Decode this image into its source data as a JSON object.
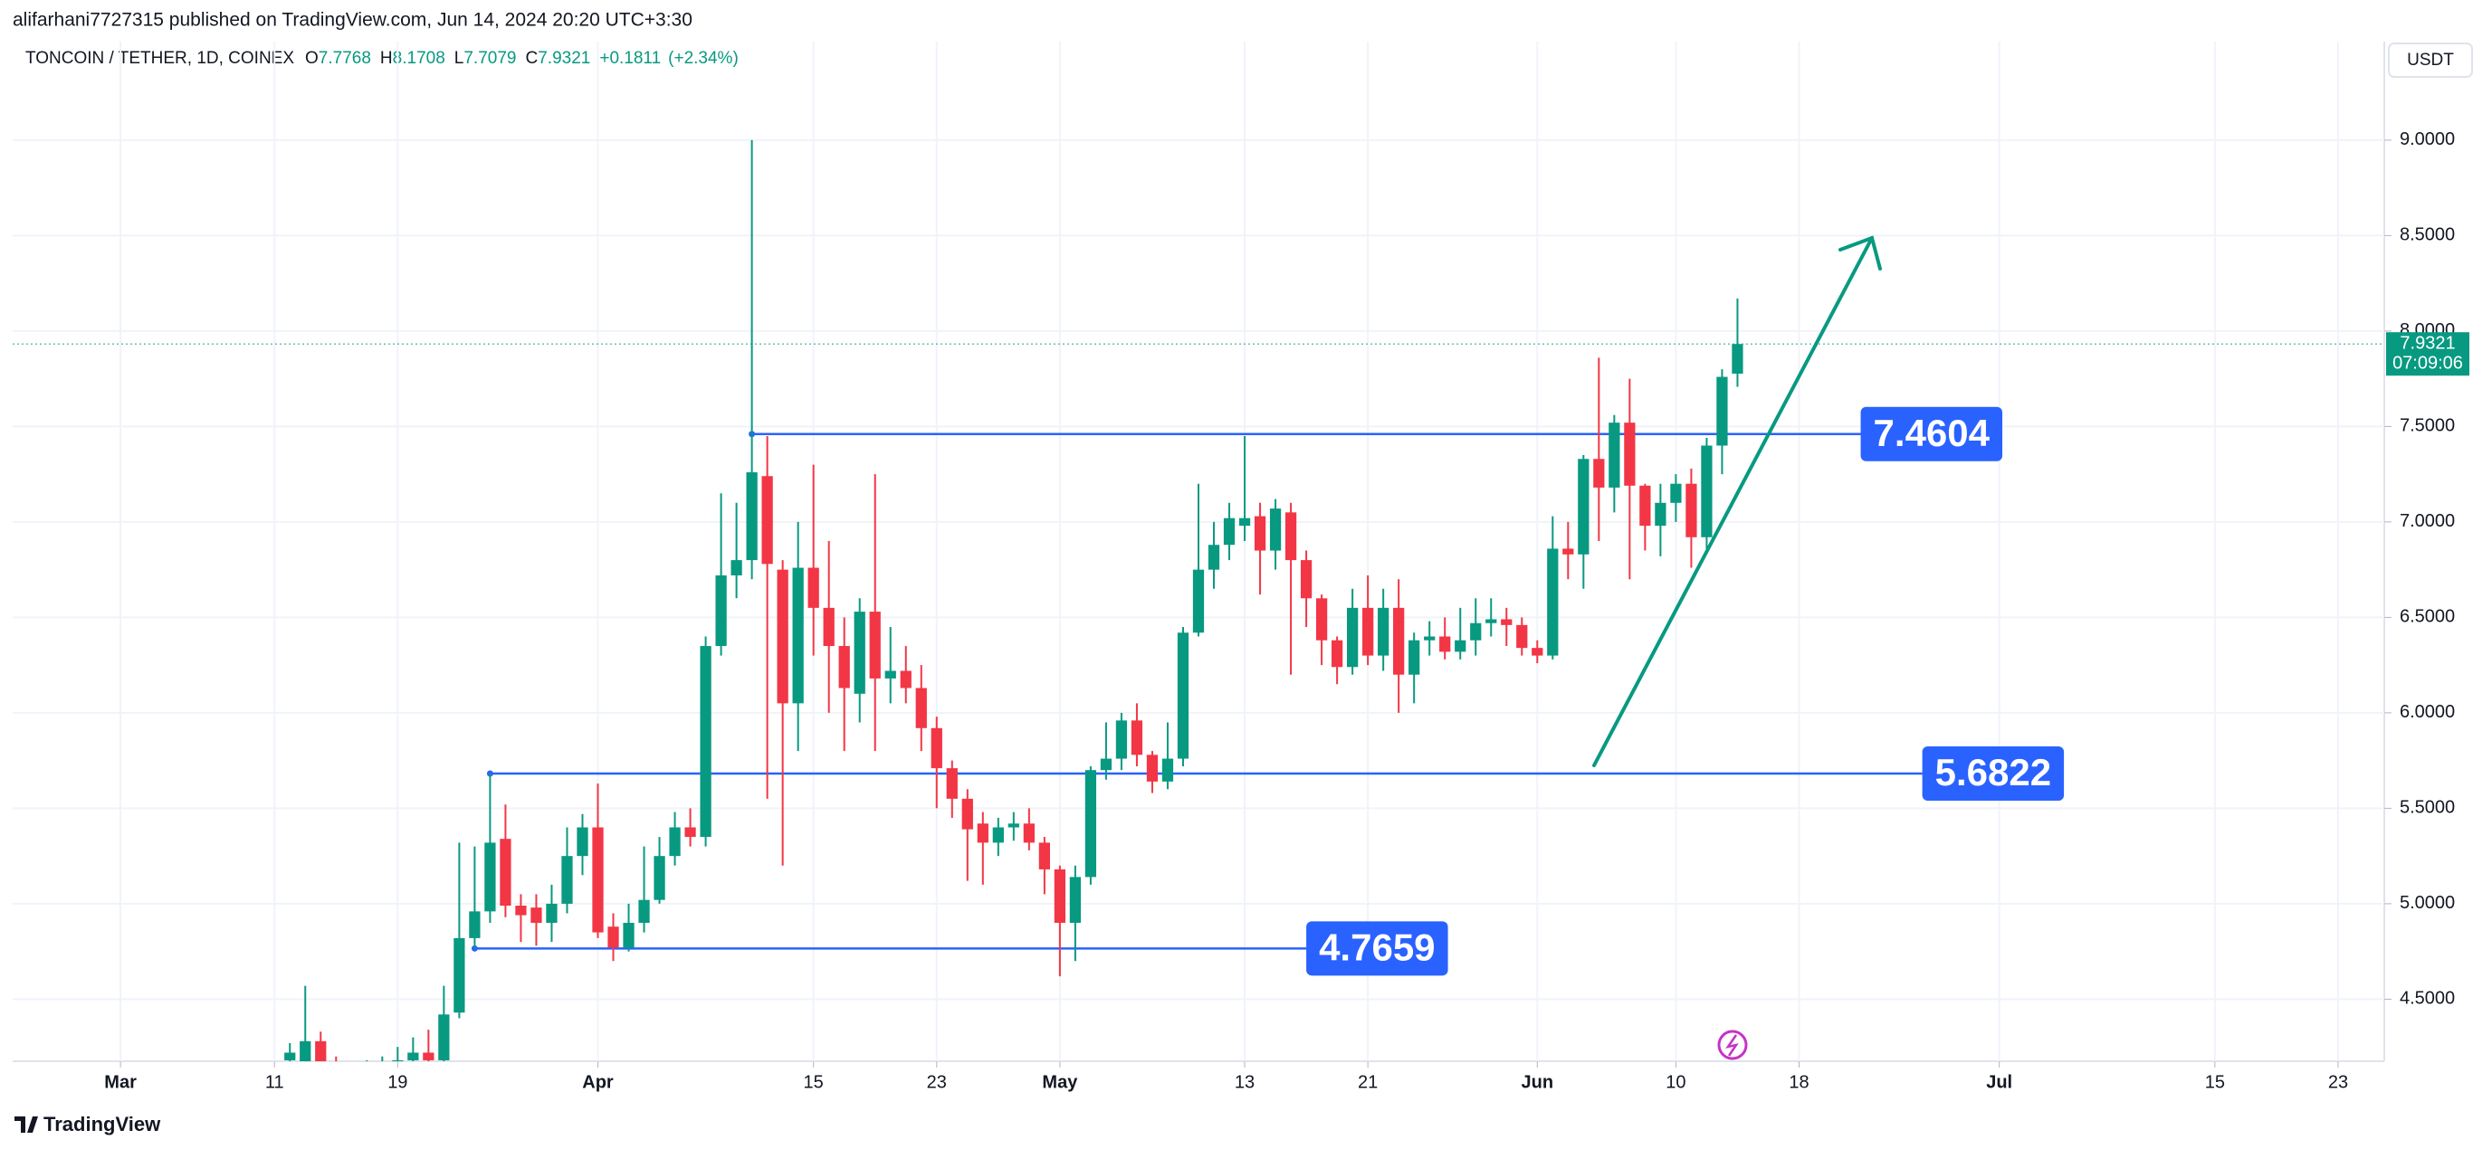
{
  "header": {
    "published": "alifarhani7727315 published on TradingView.com, Jun 14, 2024 20:20 UTC+3:30",
    "symbol": "TONCOIN / TETHER, 1D, COINEX",
    "ohlc_labels": [
      "O",
      "H",
      "L",
      "C"
    ],
    "change": "+0.1811",
    "change_pct": "(+2.34%)",
    "currency": "USDT",
    "countdown": "07:09:06",
    "brand": "TradingView"
  },
  "chart_data": {
    "type": "candlestick",
    "x": [
      "2024-03-12",
      "2024-03-13",
      "2024-03-14",
      "2024-03-15",
      "2024-03-16",
      "2024-03-17",
      "2024-03-18",
      "2024-03-19",
      "2024-03-20",
      "2024-03-21",
      "2024-03-22",
      "2024-03-23",
      "2024-03-24",
      "2024-03-25",
      "2024-03-26",
      "2024-03-27",
      "2024-03-28",
      "2024-03-29",
      "2024-03-30",
      "2024-03-31",
      "2024-04-01",
      "2024-04-02",
      "2024-04-03",
      "2024-04-04",
      "2024-04-05",
      "2024-04-06",
      "2024-04-07",
      "2024-04-08",
      "2024-04-09",
      "2024-04-10",
      "2024-04-11",
      "2024-04-12",
      "2024-04-13",
      "2024-04-14",
      "2024-04-15",
      "2024-04-16",
      "2024-04-17",
      "2024-04-18",
      "2024-04-19",
      "2024-04-20",
      "2024-04-21",
      "2024-04-22",
      "2024-04-23",
      "2024-04-24",
      "2024-04-25",
      "2024-04-26",
      "2024-04-27",
      "2024-04-28",
      "2024-04-29",
      "2024-04-30",
      "2024-05-01",
      "2024-05-02",
      "2024-05-03",
      "2024-05-04",
      "2024-05-05",
      "2024-05-06",
      "2024-05-07",
      "2024-05-08",
      "2024-05-09",
      "2024-05-10",
      "2024-05-11",
      "2024-05-12",
      "2024-05-13",
      "2024-05-14",
      "2024-05-15",
      "2024-05-16",
      "2024-05-17",
      "2024-05-18",
      "2024-05-19",
      "2024-05-20",
      "2024-05-21",
      "2024-05-22",
      "2024-05-23",
      "2024-05-24",
      "2024-05-25",
      "2024-05-26",
      "2024-05-27",
      "2024-05-28",
      "2024-05-29",
      "2024-05-30",
      "2024-05-31",
      "2024-06-01",
      "2024-06-02",
      "2024-06-03",
      "2024-06-04",
      "2024-06-05",
      "2024-06-06",
      "2024-06-07",
      "2024-06-08",
      "2024-06-09",
      "2024-06-10",
      "2024-06-11",
      "2024-06-12",
      "2024-06-13",
      "2024-06-14"
    ],
    "open": [
      4.18,
      4.15,
      4.28,
      4.15,
      3.95,
      4.0,
      4.1,
      4.15,
      4.18,
      4.22,
      4.18,
      4.43,
      4.82,
      4.96,
      5.34,
      4.99,
      4.98,
      4.9,
      5.0,
      5.25,
      5.4,
      4.88,
      4.77,
      4.9,
      5.02,
      5.25,
      5.4,
      5.35,
      6.35,
      6.72,
      6.8,
      7.24,
      6.75,
      6.05,
      6.76,
      6.55,
      6.35,
      6.1,
      6.53,
      6.18,
      6.22,
      6.13,
      5.92,
      5.71,
      5.55,
      5.42,
      5.32,
      5.4,
      5.42,
      5.32,
      5.18,
      4.9,
      5.14,
      5.7,
      5.76,
      5.96,
      5.78,
      5.64,
      5.76,
      6.42,
      6.75,
      6.88,
      6.98,
      7.03,
      6.85,
      7.05,
      6.8,
      6.6,
      6.38,
      6.24,
      6.55,
      6.3,
      6.55,
      6.2,
      6.38,
      6.4,
      6.32,
      6.38,
      6.47,
      6.49,
      6.46,
      6.34,
      6.3,
      6.86,
      6.83,
      7.33,
      7.18,
      7.52,
      7.19,
      6.98,
      7.1,
      7.2,
      6.92,
      7.4,
      7.7768
    ],
    "high": [
      4.27,
      4.57,
      4.33,
      4.2,
      4.1,
      4.18,
      4.2,
      4.25,
      4.3,
      4.34,
      4.57,
      5.32,
      5.3,
      5.6822,
      5.52,
      5.05,
      5.05,
      5.1,
      5.4,
      5.47,
      5.63,
      4.95,
      5.0,
      5.3,
      5.35,
      5.48,
      5.5,
      6.4,
      7.15,
      7.1,
      9.0,
      7.45,
      6.8,
      7.0,
      7.3,
      6.9,
      6.5,
      6.6,
      7.25,
      6.45,
      6.35,
      6.25,
      5.98,
      5.75,
      5.6,
      5.48,
      5.45,
      5.48,
      5.5,
      5.35,
      5.2,
      5.2,
      5.72,
      5.95,
      6.0,
      6.05,
      5.8,
      5.95,
      6.45,
      7.2,
      7.0,
      7.1,
      7.45,
      7.1,
      7.12,
      7.1,
      6.85,
      6.62,
      6.4,
      6.65,
      6.72,
      6.65,
      6.7,
      6.42,
      6.48,
      6.5,
      6.55,
      6.6,
      6.6,
      6.55,
      6.5,
      6.38,
      7.03,
      7.0,
      7.35,
      7.86,
      7.56,
      7.75,
      7.2,
      7.2,
      7.25,
      7.28,
      7.44,
      7.8,
      8.1708
    ],
    "low": [
      4.1,
      4.1,
      4.05,
      3.85,
      3.85,
      3.9,
      4.0,
      4.08,
      4.1,
      4.1,
      4.1,
      4.4,
      4.7659,
      4.9,
      4.93,
      4.8,
      4.78,
      4.8,
      4.95,
      5.15,
      4.82,
      4.7,
      4.75,
      4.85,
      5.0,
      5.2,
      5.3,
      5.3,
      6.3,
      6.6,
      6.7,
      5.55,
      5.2,
      5.8,
      6.3,
      6.0,
      5.8,
      5.95,
      5.8,
      6.05,
      6.05,
      5.8,
      5.5,
      5.45,
      5.12,
      5.1,
      5.25,
      5.33,
      5.28,
      5.05,
      4.62,
      4.7,
      5.1,
      5.65,
      5.7,
      5.72,
      5.58,
      5.6,
      5.72,
      6.4,
      6.65,
      6.8,
      6.9,
      6.62,
      6.75,
      6.2,
      6.45,
      6.25,
      6.15,
      6.2,
      6.25,
      6.22,
      6.0,
      6.05,
      6.3,
      6.28,
      6.28,
      6.3,
      6.4,
      6.35,
      6.3,
      6.26,
      6.28,
      6.7,
      6.65,
      6.9,
      7.05,
      6.7,
      6.85,
      6.82,
      7.0,
      6.76,
      6.86,
      7.25,
      7.7079
    ],
    "close": [
      4.22,
      4.28,
      4.15,
      3.95,
      4.0,
      4.1,
      4.15,
      4.18,
      4.22,
      4.18,
      4.42,
      4.82,
      4.96,
      5.32,
      4.99,
      4.94,
      4.9,
      5.0,
      5.25,
      5.4,
      4.85,
      4.77,
      4.9,
      5.02,
      5.25,
      5.4,
      5.35,
      6.35,
      6.72,
      6.8,
      7.26,
      6.78,
      6.05,
      6.76,
      6.55,
      6.35,
      6.13,
      6.53,
      6.18,
      6.22,
      6.13,
      5.92,
      5.71,
      5.55,
      5.39,
      5.32,
      5.4,
      5.42,
      5.32,
      5.18,
      4.9,
      5.14,
      5.7,
      5.76,
      5.96,
      5.78,
      5.64,
      5.76,
      6.42,
      6.75,
      6.88,
      7.02,
      7.02,
      6.85,
      7.07,
      6.8,
      6.6,
      6.38,
      6.24,
      6.55,
      6.3,
      6.55,
      6.2,
      6.38,
      6.4,
      6.32,
      6.38,
      6.47,
      6.49,
      6.46,
      6.34,
      6.3,
      6.86,
      6.83,
      7.33,
      7.18,
      7.52,
      7.19,
      6.98,
      7.1,
      7.2,
      6.92,
      7.4,
      7.76,
      7.9321
    ],
    "up_color": "#089981",
    "down_color": "#f23645",
    "xlim": [
      "2024-02-23",
      "2024-07-26"
    ],
    "xticks": [
      {
        "value": "2024-03-01",
        "label": "Mar"
      },
      {
        "value": "2024-03-11",
        "label": "11"
      },
      {
        "value": "2024-03-19",
        "label": "19"
      },
      {
        "value": "2024-04-01",
        "label": "Apr"
      },
      {
        "value": "2024-04-15",
        "label": "15"
      },
      {
        "value": "2024-04-23",
        "label": "23"
      },
      {
        "value": "2024-05-01",
        "label": "May"
      },
      {
        "value": "2024-05-13",
        "label": "13"
      },
      {
        "value": "2024-05-21",
        "label": "21"
      },
      {
        "value": "2024-06-01",
        "label": "Jun"
      },
      {
        "value": "2024-06-10",
        "label": "10"
      },
      {
        "value": "2024-06-18",
        "label": "18"
      },
      {
        "value": "2024-07-01",
        "label": "Jul"
      },
      {
        "value": "2024-07-15",
        "label": "15"
      },
      {
        "value": "2024-07-23",
        "label": "23"
      }
    ],
    "ylim": [
      4.175,
      9.516
    ],
    "yticks": [
      {
        "value": 4.5,
        "label": "4.5000"
      },
      {
        "value": 5,
        "label": "5.0000"
      },
      {
        "value": 5.5,
        "label": "5.5000"
      },
      {
        "value": 6,
        "label": "6.0000"
      },
      {
        "value": 6.5,
        "label": "6.5000"
      },
      {
        "value": 7,
        "label": "7.0000"
      },
      {
        "value": 7.5,
        "label": "7.5000"
      },
      {
        "value": 8,
        "label": "8.0000"
      },
      {
        "value": 8.5,
        "label": "8.5000"
      },
      {
        "value": 9,
        "label": "9.0000"
      }
    ],
    "grid": true,
    "levels": [
      {
        "value": 7.4604,
        "start": "2024-04-11",
        "end": "2024-06-22"
      },
      {
        "value": 5.6822,
        "start": "2024-03-25",
        "end": "2024-06-26"
      },
      {
        "value": 4.7659,
        "start": "2024-03-24",
        "end": "2024-05-17"
      }
    ],
    "level_color": "#2962ff"
  }
}
